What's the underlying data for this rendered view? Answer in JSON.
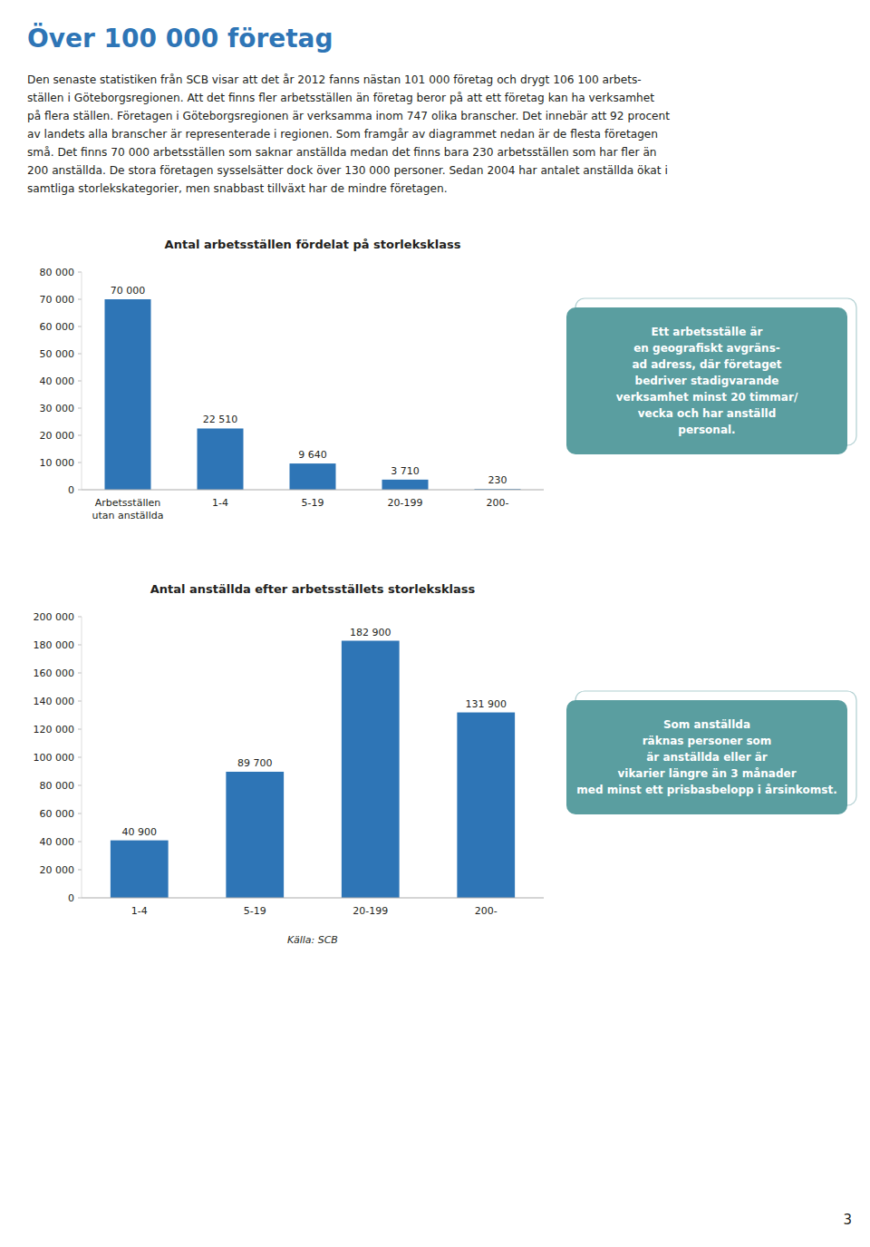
{
  "title": "Över 100 000 företag",
  "body_lines": [
    "Den senaste statistiken från SCB visar att det år 2012 fanns nästan 101 000 företag och drygt 106 100 arbets-",
    "ställen i Göteborgsregionen. Att det finns fler arbetsställen än företag beror på att ett företag kan ha verksamhet",
    "på flera ställen. Företagen i Göteborgsregionen är verksamma inom 747 olika branscher. Det innebär att 92 procent",
    "av landets alla branscher är representerade i regionen. Som framgår av diagrammet nedan är de flesta företagen",
    "små. Det finns 70 000 arbetsställen som saknar anställda medan det finns bara 230 arbetsställen som har fler än",
    "200 anställda. De stora företagen sysselsätter dock över 130 000 personer. Sedan 2004 har antalet anställda ökat i",
    "samtliga storlekskategorier, men snabbast tillväxt har de mindre företagen."
  ],
  "source": "Källa: SCB",
  "page_number": "3",
  "chart_data": [
    {
      "type": "bar",
      "title": "Antal arbetsställen fördelat på storleksklass",
      "categories": [
        "Arbetsställen utan anställda",
        "1-4",
        "5-19",
        "20-199",
        "200-"
      ],
      "values": [
        70000,
        22510,
        9640,
        3710,
        230
      ],
      "value_labels": [
        "70 000",
        "22 510",
        "9 640",
        "3 710",
        "230"
      ],
      "data_labels": true,
      "color": "#2e75b6",
      "ylim": [
        0,
        80000
      ],
      "yticks": [
        0,
        {
          "value": 10000,
          "label": "10 000"
        },
        {
          "value": 20000,
          "label": "20 000"
        },
        {
          "value": 30000,
          "label": "30 000"
        },
        {
          "value": 40000,
          "label": "40 000"
        },
        {
          "value": 50000,
          "label": "50 000"
        },
        {
          "value": 60000,
          "label": "60 000"
        },
        {
          "value": 70000,
          "label": "70 000"
        },
        {
          "value": 80000,
          "label": "80 000"
        }
      ],
      "grid": false,
      "annotations": [
        "Ett arbetsställe är",
        "en geografiskt avgräns-",
        "ad adress, där företaget",
        "bedriver stadigvarande",
        "verksamhet minst 20 timmar/",
        "vecka och har anställd",
        "personal."
      ]
    },
    {
      "type": "bar",
      "title": "Antal anställda efter arbetsställets storleksklass",
      "categories": [
        "1-4",
        "5-19",
        "20-199",
        "200-"
      ],
      "values": [
        40900,
        89700,
        182900,
        131900
      ],
      "value_labels": [
        "40 900",
        "89 700",
        "182 900",
        "131 900"
      ],
      "data_labels": true,
      "color": "#2e75b6",
      "ylim": [
        0,
        200000
      ],
      "yticks": [
        0,
        {
          "value": 20000,
          "label": "20 000"
        },
        {
          "value": 40000,
          "label": "40 000"
        },
        {
          "value": 60000,
          "label": "60 000"
        },
        {
          "value": 80000,
          "label": "80 000"
        },
        {
          "value": 100000,
          "label": "100 000"
        },
        {
          "value": 120000,
          "label": "120 000"
        },
        {
          "value": 140000,
          "label": "140 000"
        },
        {
          "value": 160000,
          "label": "160 000"
        },
        {
          "value": 180000,
          "label": "180 000"
        },
        {
          "value": 200000,
          "label": "200 000"
        }
      ],
      "grid": false,
      "annotations": [
        "Som anställda",
        "räknas personer som",
        "är anställda eller är",
        "vikarier längre än 3 månader",
        "med minst ett prisbasbelopp i årsinkomst."
      ]
    }
  ]
}
